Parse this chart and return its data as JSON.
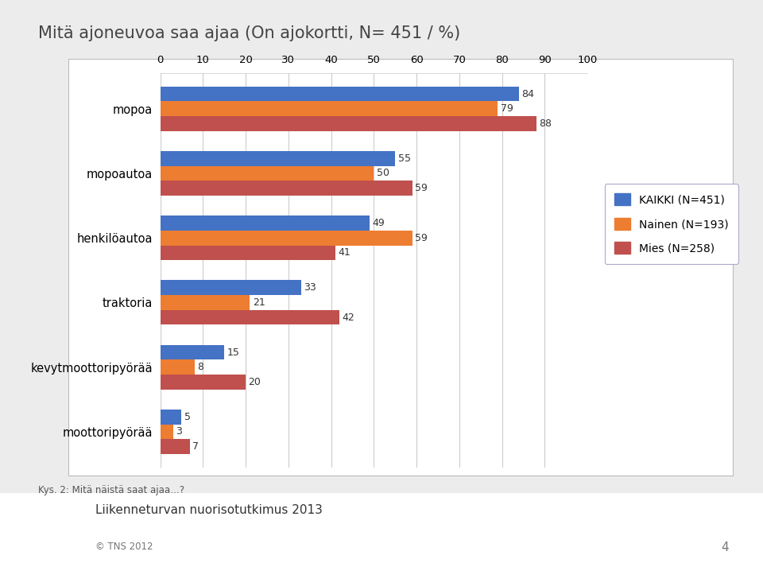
{
  "title": "Mitä ajoneuvoa saa ajaa (On ajokortti, N= 451 / %)",
  "categories": [
    "mopoa",
    "mopoautoa",
    "henkilöautoa",
    "traktoria",
    "kevytmoottoripyörää",
    "moottoripyörää"
  ],
  "series": {
    "KAIKKI (N=451)": [
      84,
      55,
      49,
      33,
      15,
      5
    ],
    "Nainen (N=193)": [
      79,
      50,
      59,
      21,
      8,
      3
    ],
    "Mies (N=258)": [
      88,
      59,
      41,
      42,
      20,
      7
    ]
  },
  "colors": {
    "KAIKKI (N=451)": "#4472C4",
    "Nainen (N=193)": "#ED7D31",
    "Mies (N=258)": "#C0504D"
  },
  "xlim": [
    0,
    100
  ],
  "xticks": [
    0,
    10,
    20,
    30,
    40,
    50,
    60,
    70,
    80,
    90,
    100
  ],
  "bar_height": 0.23,
  "background_color": "#ECECEC",
  "plot_bg_color": "#FFFFFF",
  "box_edge_color": "#BBBBBB",
  "grid_color": "#CCCCCC",
  "title_fontsize": 15,
  "label_fontsize": 10.5,
  "tick_fontsize": 9.5,
  "value_fontsize": 9,
  "legend_fontsize": 10,
  "footer_text": "Kys. 2: Mitä näistä saat ajaa…?",
  "bottom_title": "Liikenneturvan nuorisotutkimus 2013",
  "bottom_copy": "© TNS 2012",
  "page_num": "4",
  "tns_color": "#D4006A"
}
